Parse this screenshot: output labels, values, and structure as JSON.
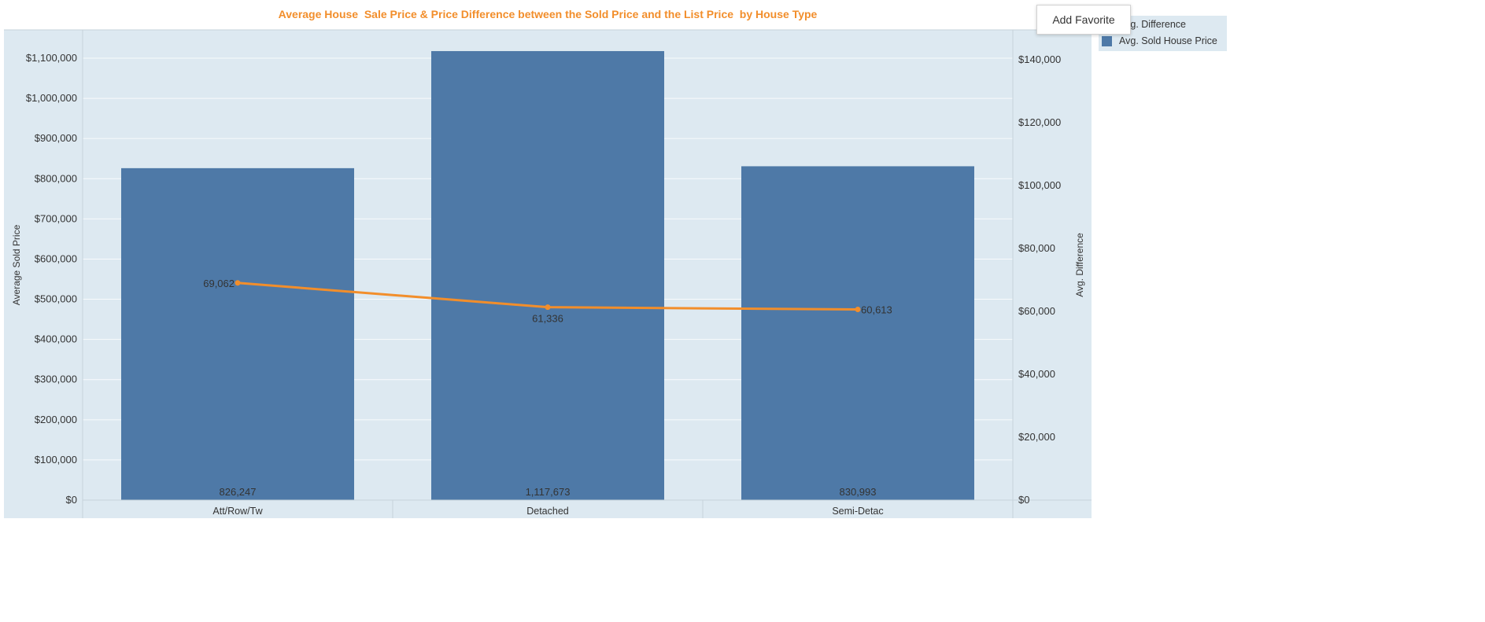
{
  "chart_data": {
    "type": "bar",
    "title": "Average House  Sale Price & Price Difference between the Sold Price and the List Price  by House Type",
    "categories": [
      "Att/Row/Tw",
      "Detached",
      "Semi-Detac"
    ],
    "series": [
      {
        "name": "Avg. Sold House Price",
        "type": "bar",
        "axis": "left",
        "values": [
          826247,
          1117673,
          830993
        ],
        "labels": [
          "826,247",
          "1,117,673",
          "830,993"
        ],
        "color": "#4e79a7"
      },
      {
        "name": "Avg. Difference",
        "type": "line",
        "axis": "right",
        "values": [
          69062,
          61336,
          60613
        ],
        "labels": [
          "69,062",
          "61,336",
          "60,613"
        ],
        "color": "#f28e2b"
      }
    ],
    "ylabel": "Average Sold Price",
    "y2label": "Avg. Difference",
    "ylim": [
      0,
      1100000
    ],
    "y2lim": [
      0,
      140000
    ],
    "yticks": [
      0,
      100000,
      200000,
      300000,
      400000,
      500000,
      600000,
      700000,
      800000,
      900000,
      1000000,
      1100000
    ],
    "yticklabels": [
      "$0",
      "$100,000",
      "$200,000",
      "$300,000",
      "$400,000",
      "$500,000",
      "$600,000",
      "$700,000",
      "$800,000",
      "$900,000",
      "$1,000,000",
      "$1,100,000"
    ],
    "y2ticks": [
      0,
      20000,
      40000,
      60000,
      80000,
      100000,
      120000,
      140000
    ],
    "y2ticklabels": [
      "$0",
      "$20,000",
      "$40,000",
      "$60,000",
      "$80,000",
      "$100,000",
      "$120,000",
      "$140,000"
    ],
    "grid": true,
    "legend_position": "top-right"
  },
  "legend": {
    "items": [
      {
        "label": "Avg. Difference",
        "color": "#f28e2b"
      },
      {
        "label": "Avg. Sold House Price",
        "color": "#4e79a7"
      }
    ]
  },
  "toolbar": {
    "add_favorite_label": "Add Favorite"
  },
  "colors": {
    "title": "#f28e2b",
    "plot_background": "#dde9f1",
    "bar": "#4e79a7",
    "line": "#f28e2b"
  }
}
